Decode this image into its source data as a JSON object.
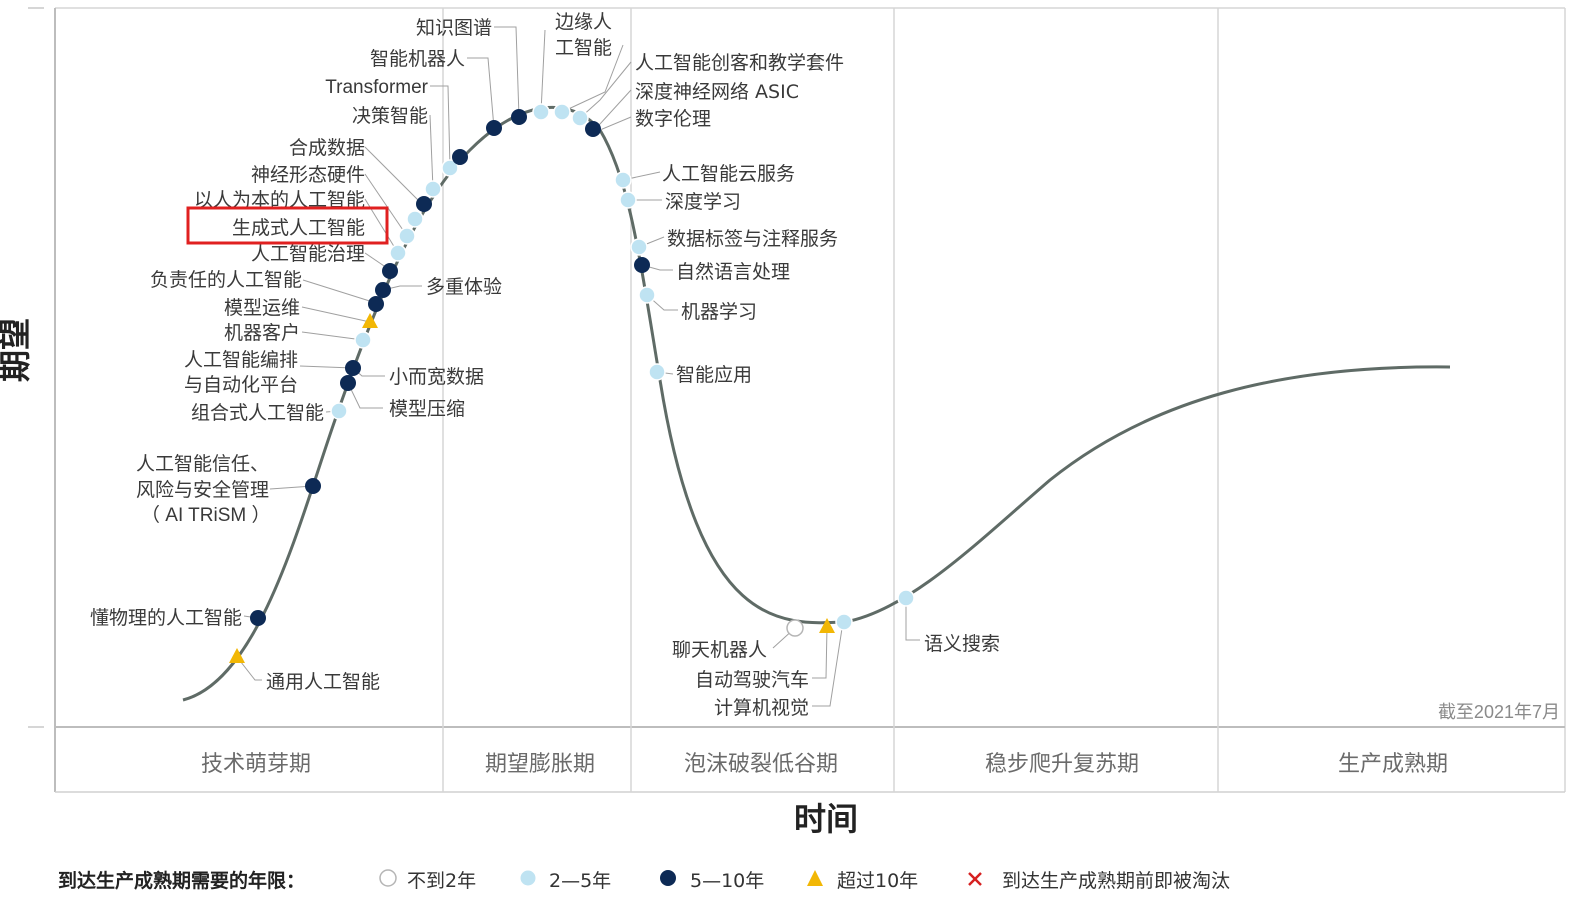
{
  "axis": {
    "y_title": "期望",
    "x_title": "时间"
  },
  "as_of": "截至2021年7月",
  "phases": [
    "技术萌芽期",
    "期望膨胀期",
    "泡沫破裂低谷期",
    "稳步爬升复苏期",
    "生产成熟期"
  ],
  "legend": {
    "title": "到达生产成熟期需要的年限：",
    "items": [
      {
        "label": "不到2年",
        "marker": "open-circle"
      },
      {
        "label": "2—5年",
        "marker": "light-circle"
      },
      {
        "label": "5—10年",
        "marker": "dark-circle"
      },
      {
        "label": "超过10年",
        "marker": "triangle"
      },
      {
        "label": "到达生产成熟期前即被淘汰",
        "marker": "x"
      }
    ]
  },
  "colors": {
    "light": "#bfe3f2",
    "dark": "#0d2a55",
    "triangle": "#f2b705",
    "x": "#d62020",
    "curve": "#5f6b66",
    "highlight": "#e02020"
  },
  "highlighted_label": "生成式人工智能",
  "technologies": [
    {
      "name": "通用人工智能",
      "marker": "triangle"
    },
    {
      "name": "懂物理的人工智能",
      "marker": "dark-circle"
    },
    {
      "name": "人工智能信任、",
      "marker": "dark-circle"
    },
    {
      "name": "风险与安全管理",
      "marker": "dark-circle"
    },
    {
      "name": "（ AI TRiSM ）",
      "marker": "dark-circle"
    },
    {
      "name": "组合式人工智能",
      "marker": "light-circle"
    },
    {
      "name": "模型压缩",
      "marker": "dark-circle"
    },
    {
      "name": "人工智能编排",
      "marker": "dark-circle"
    },
    {
      "name": "与自动化平台",
      "marker": "dark-circle"
    },
    {
      "name": "小而宽数据",
      "marker": "dark-circle"
    },
    {
      "name": "机器客户",
      "marker": "light-circle"
    },
    {
      "name": "模型运维",
      "marker": "triangle"
    },
    {
      "name": "负责任的人工智能",
      "marker": "dark-circle"
    },
    {
      "name": "多重体验",
      "marker": "dark-circle"
    },
    {
      "name": "人工智能治理",
      "marker": "dark-circle"
    },
    {
      "name": "生成式人工智能",
      "marker": "light-circle"
    },
    {
      "name": "以人为本的人工智能",
      "marker": "light-circle"
    },
    {
      "name": "神经形态硬件",
      "marker": "dark-circle"
    },
    {
      "name": "合成数据",
      "marker": "light-circle"
    },
    {
      "name": "决策智能",
      "marker": "light-circle"
    },
    {
      "name": "Transformer",
      "marker": "dark-circle"
    },
    {
      "name": "智能机器人",
      "marker": "dark-circle"
    },
    {
      "name": "知识图谱",
      "marker": "dark-circle"
    },
    {
      "name": "边缘人",
      "marker": "light-circle"
    },
    {
      "name": "工智能",
      "marker": "light-circle"
    },
    {
      "name": "人工智能创客和教学套件",
      "marker": "light-circle"
    },
    {
      "name": "深度神经网络 ASIC",
      "marker": "light-circle"
    },
    {
      "name": "数字伦理",
      "marker": "dark-circle"
    },
    {
      "name": "人工智能云服务",
      "marker": "light-circle"
    },
    {
      "name": "深度学习",
      "marker": "light-circle"
    },
    {
      "name": "数据标签与注释服务",
      "marker": "light-circle"
    },
    {
      "name": "自然语言处理",
      "marker": "dark-circle"
    },
    {
      "name": "机器学习",
      "marker": "light-circle"
    },
    {
      "name": "智能应用",
      "marker": "light-circle"
    },
    {
      "name": "聊天机器人",
      "marker": "open-circle"
    },
    {
      "name": "自动驾驶汽车",
      "marker": "triangle"
    },
    {
      "name": "计算机视觉",
      "marker": "light-circle"
    },
    {
      "name": "语义搜索",
      "marker": "light-circle"
    }
  ]
}
